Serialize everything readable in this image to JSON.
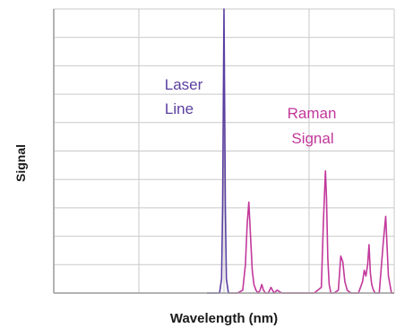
{
  "chart_data": {
    "type": "line",
    "xlabel": "Wavelength (nm)",
    "ylabel": "Signal",
    "xlim": [
      0,
      100
    ],
    "ylim": [
      0,
      100
    ],
    "grid": true,
    "x_ticks_shown": false,
    "y_ticks_shown": false,
    "annotations": [
      {
        "id": "laser",
        "lines": [
          "Laser",
          "Line"
        ],
        "color": "#5b3fa0"
      },
      {
        "id": "raman",
        "lines": [
          "Raman",
          "Signal"
        ],
        "color": "#c2389b"
      }
    ],
    "series": [
      {
        "id": "laser-line",
        "color": "#5b3fa0",
        "x": [
          45.0,
          48.7,
          49.3,
          49.6,
          50.0,
          50.4,
          50.7,
          51.3,
          51.8
        ],
        "y": [
          0,
          0,
          5,
          30,
          100,
          30,
          5,
          0,
          0
        ]
      },
      {
        "id": "raman-signal",
        "color": "#c2389b",
        "x": [
          51.8,
          54.0,
          55.5,
          56.3,
          56.8,
          57.3,
          57.8,
          58.3,
          58.8,
          59.4,
          60.0,
          60.6,
          61.1,
          61.6,
          62.2,
          63.0,
          63.8,
          64.7,
          65.6,
          67.0,
          72.0,
          76.5,
          78.6,
          79.2,
          79.8,
          80.1,
          80.5,
          80.9,
          81.4,
          82.3,
          83.6,
          84.3,
          84.9,
          85.5,
          86.2,
          87.3,
          88.5,
          89.5,
          90.7,
          91.2,
          91.7,
          92.2,
          92.6,
          93.0,
          93.4,
          93.9,
          94.4,
          95.0,
          95.6,
          96.8,
          97.5,
          98.3,
          99.2,
          100.0
        ],
        "y": [
          0,
          0,
          1,
          10,
          24,
          32,
          20,
          8,
          3,
          1,
          0,
          1,
          3,
          1,
          0,
          0,
          2,
          0,
          1,
          0,
          0,
          0,
          2,
          25,
          43,
          34,
          12,
          3,
          0,
          0,
          1,
          13,
          11,
          4,
          1,
          0,
          0,
          0,
          4,
          8,
          6,
          10,
          17,
          7,
          3,
          1,
          0,
          0,
          0,
          18,
          27,
          6,
          0,
          0
        ]
      }
    ]
  }
}
